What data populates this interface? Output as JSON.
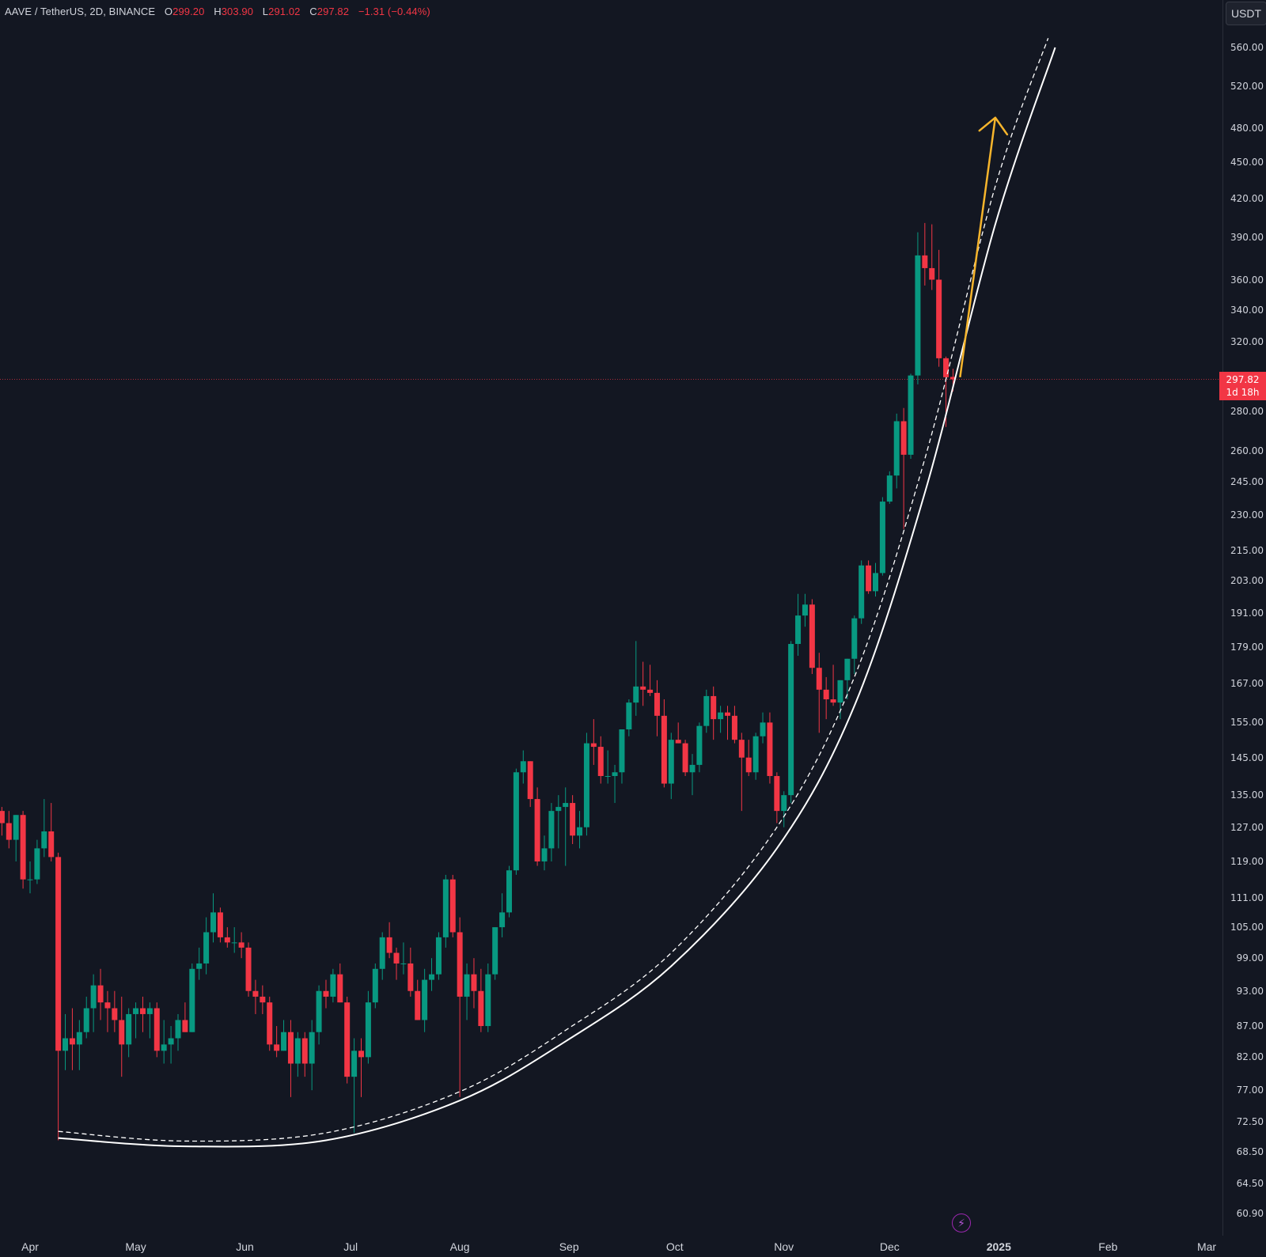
{
  "header": {
    "symbol": "AAVE / TetherUS, 2D, BINANCE",
    "open_label": "O",
    "open": "299.20",
    "high_label": "H",
    "high": "303.90",
    "low_label": "L",
    "low": "291.02",
    "close_label": "C",
    "close": "297.82",
    "change": "−1.31 (−0.44%)"
  },
  "currency": "USDT",
  "last_price": {
    "value": "297.82",
    "countdown": "1d 18h"
  },
  "icons": {
    "bolt": "lightning-bolt-icon"
  },
  "colors": {
    "up": "#089981",
    "down": "#f23645",
    "background": "#131722",
    "arrow": "#f7b52c",
    "curve": "#ffffff"
  },
  "chart_data": {
    "type": "candlestick",
    "symbol": "AAVE / TetherUS",
    "interval": "2D",
    "exchange": "BINANCE",
    "y_scale": "log",
    "y_ticks": [
      "560.00",
      "520.00",
      "480.00",
      "450.00",
      "420.00",
      "390.00",
      "360.00",
      "340.00",
      "320.00",
      "280.00",
      "260.00",
      "245.00",
      "230.00",
      "215.00",
      "203.00",
      "191.00",
      "179.00",
      "167.00",
      "155.00",
      "145.00",
      "135.00",
      "127.00",
      "119.00",
      "111.00",
      "105.00",
      "99.00",
      "93.00",
      "87.00",
      "82.00",
      "77.00",
      "72.50",
      "68.50",
      "64.50",
      "60.90"
    ],
    "x_ticks": [
      "Apr",
      "May",
      "Jun",
      "Jul",
      "Aug",
      "Sep",
      "Oct",
      "Nov",
      "Dec",
      "2025",
      "Feb",
      "Mar"
    ],
    "x_range": [
      "2024-04-01",
      "2025-03-01"
    ],
    "ohlc": [
      {
        "d": "2024-03-22",
        "o": 126,
        "h": 132,
        "l": 122,
        "c": 131
      },
      {
        "d": "2024-03-24",
        "o": 131,
        "h": 132,
        "l": 125,
        "c": 128
      },
      {
        "d": "2024-03-26",
        "o": 128,
        "h": 131,
        "l": 122,
        "c": 124
      },
      {
        "d": "2024-03-28",
        "o": 124,
        "h": 130,
        "l": 119,
        "c": 130
      },
      {
        "d": "2024-03-30",
        "o": 130,
        "h": 131,
        "l": 113,
        "c": 115
      },
      {
        "d": "2024-04-01",
        "o": 115,
        "h": 119,
        "l": 112,
        "c": 115
      },
      {
        "d": "2024-04-03",
        "o": 115,
        "h": 124,
        "l": 114,
        "c": 122
      },
      {
        "d": "2024-04-05",
        "o": 122,
        "h": 134,
        "l": 120,
        "c": 126
      },
      {
        "d": "2024-04-07",
        "o": 126,
        "h": 133,
        "l": 119,
        "c": 120
      },
      {
        "d": "2024-04-09",
        "o": 120,
        "h": 121,
        "l": 70,
        "c": 83
      },
      {
        "d": "2024-04-11",
        "o": 83,
        "h": 89,
        "l": 80,
        "c": 85
      },
      {
        "d": "2024-04-13",
        "o": 85,
        "h": 90,
        "l": 80,
        "c": 84
      },
      {
        "d": "2024-04-15",
        "o": 84,
        "h": 88,
        "l": 80,
        "c": 86
      },
      {
        "d": "2024-04-17",
        "o": 86,
        "h": 92,
        "l": 85,
        "c": 90
      },
      {
        "d": "2024-04-19",
        "o": 90,
        "h": 96,
        "l": 86,
        "c": 94
      },
      {
        "d": "2024-04-21",
        "o": 94,
        "h": 97,
        "l": 88,
        "c": 91
      },
      {
        "d": "2024-04-23",
        "o": 91,
        "h": 93,
        "l": 86,
        "c": 90
      },
      {
        "d": "2024-04-25",
        "o": 90,
        "h": 93,
        "l": 86,
        "c": 88
      },
      {
        "d": "2024-04-27",
        "o": 88,
        "h": 92,
        "l": 79,
        "c": 84
      },
      {
        "d": "2024-04-29",
        "o": 84,
        "h": 90,
        "l": 82,
        "c": 89
      },
      {
        "d": "2024-05-01",
        "o": 89,
        "h": 91,
        "l": 85,
        "c": 90
      },
      {
        "d": "2024-05-03",
        "o": 90,
        "h": 92,
        "l": 86,
        "c": 89
      },
      {
        "d": "2024-05-05",
        "o": 89,
        "h": 91,
        "l": 85,
        "c": 90
      },
      {
        "d": "2024-05-07",
        "o": 90,
        "h": 91,
        "l": 82,
        "c": 83
      },
      {
        "d": "2024-05-09",
        "o": 83,
        "h": 88,
        "l": 81,
        "c": 84
      },
      {
        "d": "2024-05-11",
        "o": 84,
        "h": 87,
        "l": 81,
        "c": 85
      },
      {
        "d": "2024-05-13",
        "o": 85,
        "h": 89,
        "l": 83,
        "c": 88
      },
      {
        "d": "2024-05-15",
        "o": 88,
        "h": 91,
        "l": 86,
        "c": 86
      },
      {
        "d": "2024-05-17",
        "o": 86,
        "h": 98,
        "l": 86,
        "c": 97
      },
      {
        "d": "2024-05-19",
        "o": 97,
        "h": 101,
        "l": 95,
        "c": 98
      },
      {
        "d": "2024-05-21",
        "o": 98,
        "h": 107,
        "l": 96,
        "c": 104
      },
      {
        "d": "2024-05-23",
        "o": 104,
        "h": 112,
        "l": 102,
        "c": 108
      },
      {
        "d": "2024-05-25",
        "o": 108,
        "h": 109,
        "l": 102,
        "c": 103
      },
      {
        "d": "2024-05-27",
        "o": 103,
        "h": 105,
        "l": 101,
        "c": 102
      },
      {
        "d": "2024-05-29",
        "o": 102,
        "h": 105,
        "l": 100,
        "c": 102
      },
      {
        "d": "2024-05-31",
        "o": 102,
        "h": 104,
        "l": 99,
        "c": 101
      },
      {
        "d": "2024-06-02",
        "o": 101,
        "h": 102,
        "l": 92,
        "c": 93
      },
      {
        "d": "2024-06-04",
        "o": 93,
        "h": 95,
        "l": 89,
        "c": 92
      },
      {
        "d": "2024-06-06",
        "o": 92,
        "h": 94,
        "l": 89,
        "c": 91
      },
      {
        "d": "2024-06-08",
        "o": 91,
        "h": 92,
        "l": 83,
        "c": 84
      },
      {
        "d": "2024-06-10",
        "o": 84,
        "h": 87,
        "l": 82,
        "c": 83
      },
      {
        "d": "2024-06-12",
        "o": 83,
        "h": 88,
        "l": 83,
        "c": 86
      },
      {
        "d": "2024-06-14",
        "o": 86,
        "h": 88,
        "l": 76,
        "c": 81
      },
      {
        "d": "2024-06-16",
        "o": 81,
        "h": 86,
        "l": 79,
        "c": 85
      },
      {
        "d": "2024-06-18",
        "o": 85,
        "h": 86,
        "l": 79,
        "c": 81
      },
      {
        "d": "2024-06-20",
        "o": 81,
        "h": 88,
        "l": 77,
        "c": 86
      },
      {
        "d": "2024-06-22",
        "o": 86,
        "h": 94,
        "l": 84,
        "c": 93
      },
      {
        "d": "2024-06-24",
        "o": 93,
        "h": 95,
        "l": 90,
        "c": 92
      },
      {
        "d": "2024-06-26",
        "o": 92,
        "h": 97,
        "l": 91,
        "c": 96
      },
      {
        "d": "2024-06-28",
        "o": 96,
        "h": 98,
        "l": 91,
        "c": 91
      },
      {
        "d": "2024-06-30",
        "o": 91,
        "h": 92,
        "l": 78,
        "c": 79
      },
      {
        "d": "2024-07-02",
        "o": 79,
        "h": 85,
        "l": 71,
        "c": 83
      },
      {
        "d": "2024-07-04",
        "o": 83,
        "h": 85,
        "l": 76,
        "c": 82
      },
      {
        "d": "2024-07-06",
        "o": 82,
        "h": 93,
        "l": 81,
        "c": 91
      },
      {
        "d": "2024-07-08",
        "o": 91,
        "h": 98,
        "l": 90,
        "c": 97
      },
      {
        "d": "2024-07-10",
        "o": 97,
        "h": 104,
        "l": 95,
        "c": 103
      },
      {
        "d": "2024-07-12",
        "o": 103,
        "h": 106,
        "l": 99,
        "c": 100
      },
      {
        "d": "2024-07-14",
        "o": 100,
        "h": 101,
        "l": 95,
        "c": 98
      },
      {
        "d": "2024-07-16",
        "o": 98,
        "h": 102,
        "l": 96,
        "c": 98
      },
      {
        "d": "2024-07-18",
        "o": 98,
        "h": 101,
        "l": 92,
        "c": 93
      },
      {
        "d": "2024-07-20",
        "o": 93,
        "h": 95,
        "l": 88,
        "c": 88
      },
      {
        "d": "2024-07-22",
        "o": 88,
        "h": 97,
        "l": 86,
        "c": 95
      },
      {
        "d": "2024-07-24",
        "o": 95,
        "h": 99,
        "l": 93,
        "c": 96
      },
      {
        "d": "2024-07-26",
        "o": 96,
        "h": 104,
        "l": 95,
        "c": 103
      },
      {
        "d": "2024-07-28",
        "o": 103,
        "h": 116,
        "l": 101,
        "c": 115
      },
      {
        "d": "2024-07-30",
        "o": 115,
        "h": 116,
        "l": 103,
        "c": 104
      },
      {
        "d": "2024-08-01",
        "o": 104,
        "h": 107,
        "l": 76,
        "c": 92
      },
      {
        "d": "2024-08-03",
        "o": 92,
        "h": 98,
        "l": 88,
        "c": 96
      },
      {
        "d": "2024-08-05",
        "o": 96,
        "h": 99,
        "l": 90,
        "c": 93
      },
      {
        "d": "2024-08-07",
        "o": 93,
        "h": 97,
        "l": 86,
        "c": 87
      },
      {
        "d": "2024-08-09",
        "o": 87,
        "h": 98,
        "l": 86,
        "c": 96
      },
      {
        "d": "2024-08-11",
        "o": 96,
        "h": 105,
        "l": 95,
        "c": 105
      },
      {
        "d": "2024-08-13",
        "o": 105,
        "h": 112,
        "l": 103,
        "c": 108
      },
      {
        "d": "2024-08-15",
        "o": 108,
        "h": 118,
        "l": 107,
        "c": 117
      },
      {
        "d": "2024-08-17",
        "o": 117,
        "h": 142,
        "l": 116,
        "c": 141
      },
      {
        "d": "2024-08-19",
        "o": 141,
        "h": 147,
        "l": 138,
        "c": 144
      },
      {
        "d": "2024-08-21",
        "o": 144,
        "h": 144,
        "l": 132,
        "c": 134
      },
      {
        "d": "2024-08-23",
        "o": 134,
        "h": 137,
        "l": 118,
        "c": 119
      },
      {
        "d": "2024-08-25",
        "o": 119,
        "h": 125,
        "l": 117,
        "c": 122
      },
      {
        "d": "2024-08-27",
        "o": 122,
        "h": 133,
        "l": 119,
        "c": 131
      },
      {
        "d": "2024-08-29",
        "o": 131,
        "h": 135,
        "l": 122,
        "c": 132
      },
      {
        "d": "2024-08-31",
        "o": 132,
        "h": 137,
        "l": 118,
        "c": 133
      },
      {
        "d": "2024-09-02",
        "o": 133,
        "h": 135,
        "l": 123,
        "c": 125
      },
      {
        "d": "2024-09-04",
        "o": 125,
        "h": 131,
        "l": 122,
        "c": 127
      },
      {
        "d": "2024-09-06",
        "o": 127,
        "h": 152,
        "l": 125,
        "c": 149
      },
      {
        "d": "2024-09-08",
        "o": 149,
        "h": 156,
        "l": 143,
        "c": 148
      },
      {
        "d": "2024-09-10",
        "o": 148,
        "h": 151,
        "l": 138,
        "c": 140
      },
      {
        "d": "2024-09-12",
        "o": 140,
        "h": 147,
        "l": 138,
        "c": 140
      },
      {
        "d": "2024-09-14",
        "o": 140,
        "h": 143,
        "l": 133,
        "c": 141
      },
      {
        "d": "2024-09-16",
        "o": 141,
        "h": 153,
        "l": 138,
        "c": 153
      },
      {
        "d": "2024-09-18",
        "o": 153,
        "h": 162,
        "l": 151,
        "c": 161
      },
      {
        "d": "2024-09-20",
        "o": 161,
        "h": 181,
        "l": 157,
        "c": 166
      },
      {
        "d": "2024-09-22",
        "o": 166,
        "h": 174,
        "l": 160,
        "c": 165
      },
      {
        "d": "2024-09-24",
        "o": 165,
        "h": 173,
        "l": 163,
        "c": 164
      },
      {
        "d": "2024-09-26",
        "o": 164,
        "h": 168,
        "l": 151,
        "c": 157
      },
      {
        "d": "2024-09-28",
        "o": 157,
        "h": 162,
        "l": 137,
        "c": 138
      },
      {
        "d": "2024-09-30",
        "o": 138,
        "h": 152,
        "l": 134,
        "c": 150
      },
      {
        "d": "2024-10-02",
        "o": 150,
        "h": 155,
        "l": 149,
        "c": 149
      },
      {
        "d": "2024-10-04",
        "o": 149,
        "h": 150,
        "l": 140,
        "c": 141
      },
      {
        "d": "2024-10-06",
        "o": 141,
        "h": 146,
        "l": 135,
        "c": 143
      },
      {
        "d": "2024-10-08",
        "o": 143,
        "h": 155,
        "l": 141,
        "c": 154
      },
      {
        "d": "2024-10-10",
        "o": 154,
        "h": 165,
        "l": 152,
        "c": 163
      },
      {
        "d": "2024-10-12",
        "o": 163,
        "h": 166,
        "l": 150,
        "c": 156
      },
      {
        "d": "2024-10-14",
        "o": 156,
        "h": 160,
        "l": 152,
        "c": 158
      },
      {
        "d": "2024-10-16",
        "o": 158,
        "h": 160,
        "l": 150,
        "c": 157
      },
      {
        "d": "2024-10-18",
        "o": 157,
        "h": 160,
        "l": 149,
        "c": 150
      },
      {
        "d": "2024-10-20",
        "o": 150,
        "h": 152,
        "l": 131,
        "c": 145
      },
      {
        "d": "2024-10-22",
        "o": 145,
        "h": 150,
        "l": 140,
        "c": 141
      },
      {
        "d": "2024-10-24",
        "o": 141,
        "h": 152,
        "l": 139,
        "c": 151
      },
      {
        "d": "2024-10-26",
        "o": 151,
        "h": 158,
        "l": 149,
        "c": 155
      },
      {
        "d": "2024-10-28",
        "o": 155,
        "h": 158,
        "l": 138,
        "c": 140
      },
      {
        "d": "2024-10-30",
        "o": 140,
        "h": 141,
        "l": 128,
        "c": 131
      },
      {
        "d": "2024-11-01",
        "o": 131,
        "h": 136,
        "l": 127,
        "c": 135
      },
      {
        "d": "2024-11-03",
        "o": 135,
        "h": 181,
        "l": 133,
        "c": 180
      },
      {
        "d": "2024-11-05",
        "o": 180,
        "h": 198,
        "l": 176,
        "c": 190
      },
      {
        "d": "2024-11-07",
        "o": 190,
        "h": 198,
        "l": 186,
        "c": 194
      },
      {
        "d": "2024-11-09",
        "o": 194,
        "h": 196,
        "l": 170,
        "c": 172
      },
      {
        "d": "2024-11-11",
        "o": 172,
        "h": 177,
        "l": 152,
        "c": 165
      },
      {
        "d": "2024-11-13",
        "o": 165,
        "h": 169,
        "l": 156,
        "c": 162
      },
      {
        "d": "2024-11-15",
        "o": 162,
        "h": 173,
        "l": 160,
        "c": 161
      },
      {
        "d": "2024-11-17",
        "o": 161,
        "h": 168,
        "l": 156,
        "c": 168
      },
      {
        "d": "2024-11-19",
        "o": 168,
        "h": 175,
        "l": 162,
        "c": 175
      },
      {
        "d": "2024-11-21",
        "o": 175,
        "h": 190,
        "l": 170,
        "c": 189
      },
      {
        "d": "2024-11-23",
        "o": 189,
        "h": 211,
        "l": 187,
        "c": 209
      },
      {
        "d": "2024-11-25",
        "o": 209,
        "h": 211,
        "l": 198,
        "c": 199
      },
      {
        "d": "2024-11-27",
        "o": 199,
        "h": 210,
        "l": 197,
        "c": 206
      },
      {
        "d": "2024-11-29",
        "o": 206,
        "h": 238,
        "l": 205,
        "c": 236
      },
      {
        "d": "2024-12-01",
        "o": 236,
        "h": 250,
        "l": 235,
        "c": 248
      },
      {
        "d": "2024-12-03",
        "o": 248,
        "h": 279,
        "l": 242,
        "c": 275
      },
      {
        "d": "2024-12-05",
        "o": 275,
        "h": 282,
        "l": 224,
        "c": 258
      },
      {
        "d": "2024-12-07",
        "o": 258,
        "h": 301,
        "l": 256,
        "c": 300
      },
      {
        "d": "2024-12-09",
        "o": 300,
        "h": 394,
        "l": 295,
        "c": 377
      },
      {
        "d": "2024-12-11",
        "o": 377,
        "h": 401,
        "l": 356,
        "c": 368
      },
      {
        "d": "2024-12-13",
        "o": 368,
        "h": 400,
        "l": 353,
        "c": 360
      },
      {
        "d": "2024-12-15",
        "o": 360,
        "h": 381,
        "l": 305,
        "c": 310
      },
      {
        "d": "2024-12-17",
        "o": 310,
        "h": 311,
        "l": 272,
        "c": 299
      },
      {
        "d": "2024-12-19",
        "o": 299.2,
        "h": 303.9,
        "l": 291.02,
        "c": 297.82
      }
    ],
    "annotations": [
      {
        "type": "curve",
        "style": "solid",
        "color": "#ffffff",
        "points": [
          [
            "2024-04-09",
            70.3
          ],
          [
            "2024-05-15",
            69.2
          ],
          [
            "2024-06-24",
            70.0
          ],
          [
            "2024-08-01",
            75.5
          ],
          [
            "2024-08-31",
            84.5
          ],
          [
            "2024-09-30",
            97.5
          ],
          [
            "2024-10-30",
            122
          ],
          [
            "2024-11-21",
            160
          ],
          [
            "2024-12-11",
            240
          ],
          [
            "2024-12-31",
            400
          ],
          [
            "2025-01-17",
            560
          ]
        ]
      },
      {
        "type": "curve",
        "style": "dashed",
        "color": "#ffffff",
        "points": [
          [
            "2024-04-09",
            71.2
          ],
          [
            "2024-05-15",
            69.9
          ],
          [
            "2024-06-24",
            71.0
          ],
          [
            "2024-08-01",
            76.8
          ],
          [
            "2024-08-31",
            86.3
          ],
          [
            "2024-09-30",
            100
          ],
          [
            "2024-10-30",
            127
          ],
          [
            "2024-11-21",
            169
          ],
          [
            "2024-12-11",
            256
          ],
          [
            "2024-12-31",
            430
          ],
          [
            "2025-01-15",
            570
          ]
        ]
      },
      {
        "type": "arrow",
        "color": "#f7b52c",
        "from": [
          "2024-12-21",
          299
        ],
        "to": [
          "2024-12-31",
          490
        ]
      }
    ]
  }
}
